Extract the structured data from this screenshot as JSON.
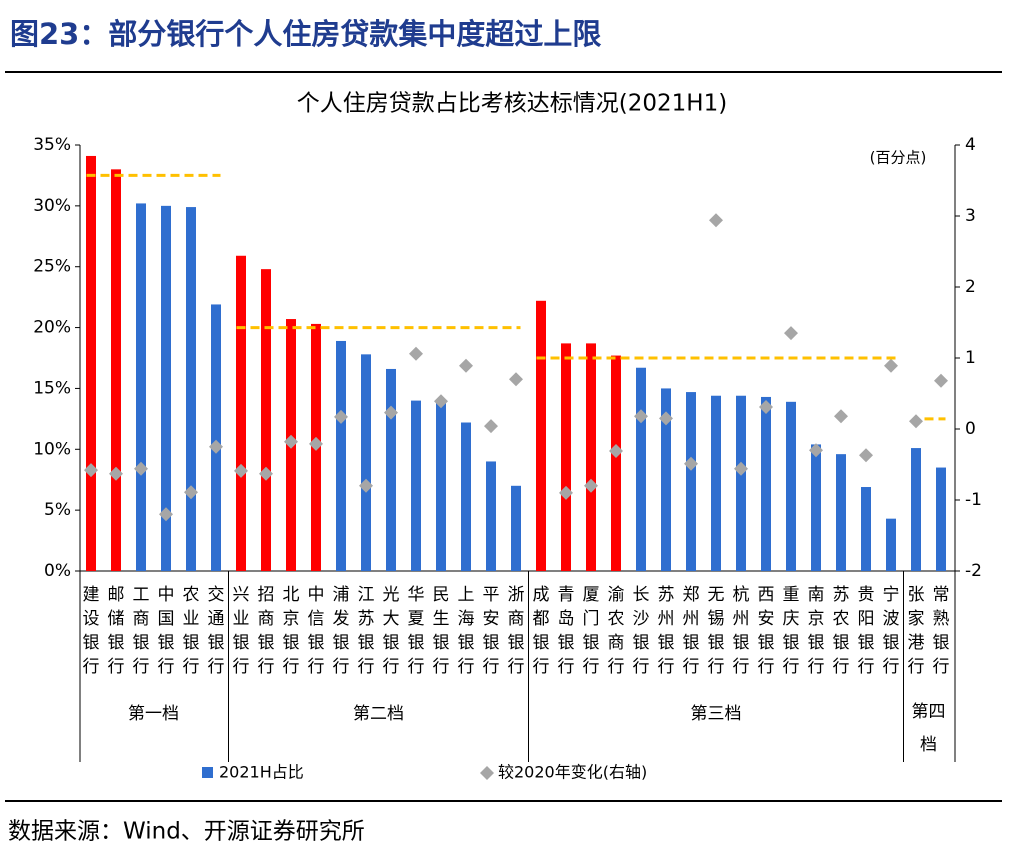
{
  "header": {
    "title": "图23：部分银行个人住房贷款集中度超过上限"
  },
  "chart_data": {
    "type": "bar",
    "title": "个人住房贷款占比考核达标情况(2021H1)",
    "categories": [
      "建设银行",
      "邮储银行",
      "工商银行",
      "中国银行",
      "农业银行",
      "交通银行",
      "兴业银行",
      "招商银行",
      "北京银行",
      "中信银行",
      "浦发银行",
      "江苏银行",
      "光大银行",
      "华夏银行",
      "民生银行",
      "上海银行",
      "平安银行",
      "浙商银行",
      "成都银行",
      "青岛银行",
      "厦门银行",
      "渝农商行",
      "长沙银行",
      "苏州银行",
      "郑州银行",
      "无锡银行",
      "杭州银行",
      "西安银行",
      "重庆银行",
      "南京银行",
      "苏农银行",
      "贵阳银行",
      "宁波银行",
      "张家港行",
      "常熟银行"
    ],
    "groups": [
      {
        "label": "第一档",
        "size": 6,
        "limit": 32.5
      },
      {
        "label": "第二档",
        "size": 12,
        "limit": 20
      },
      {
        "label": "第三档",
        "size": 15,
        "limit": 17.5
      },
      {
        "label": "第四档",
        "size": 2,
        "limit": 12.5
      }
    ],
    "limit_color": "#ffc000",
    "series": [
      {
        "name": "2021H占比",
        "type": "bar",
        "color": "#2f6ecf",
        "values": [
          34.1,
          33.0,
          30.2,
          30.0,
          29.9,
          21.9,
          25.9,
          24.8,
          20.7,
          20.3,
          18.9,
          17.8,
          16.6,
          14.0,
          13.9,
          12.2,
          9.0,
          7.0,
          22.2,
          18.7,
          18.7,
          17.7,
          16.7,
          15.0,
          14.7,
          14.4,
          14.4,
          14.3,
          13.9,
          10.4,
          9.6,
          6.9,
          4.3,
          10.1,
          8.5
        ],
        "bar_colors": [
          "#ff0000",
          "#ff0000",
          "#2f6ecf",
          "#2f6ecf",
          "#2f6ecf",
          "#2f6ecf",
          "#ff0000",
          "#ff0000",
          "#ff0000",
          "#ff0000",
          "#2f6ecf",
          "#2f6ecf",
          "#2f6ecf",
          "#2f6ecf",
          "#2f6ecf",
          "#2f6ecf",
          "#2f6ecf",
          "#2f6ecf",
          "#ff0000",
          "#ff0000",
          "#ff0000",
          "#ff0000",
          "#2f6ecf",
          "#2f6ecf",
          "#2f6ecf",
          "#2f6ecf",
          "#2f6ecf",
          "#2f6ecf",
          "#2f6ecf",
          "#2f6ecf",
          "#2f6ecf",
          "#2f6ecf",
          "#2f6ecf",
          "#2f6ecf",
          "#2f6ecf"
        ]
      },
      {
        "name": "较2020年变化(右轴)",
        "type": "scatter",
        "axis": "y2",
        "color": "#a6a6a6",
        "values": [
          -0.58,
          -0.63,
          -0.56,
          -1.2,
          -0.89,
          -0.25,
          -0.59,
          -0.63,
          -0.18,
          -0.21,
          0.17,
          -0.8,
          0.23,
          1.06,
          0.39,
          0.89,
          0.04,
          0.7,
          null,
          -0.9,
          -0.8,
          -0.31,
          0.18,
          0.15,
          -0.49,
          2.94,
          -0.56,
          0.31,
          1.35,
          -0.3,
          0.18,
          -0.37,
          0.89,
          0.11,
          0.68
        ]
      }
    ],
    "ylim": [
      0,
      35
    ],
    "yticks": [
      {
        "value": 0,
        "label": "0%"
      },
      {
        "value": 5,
        "label": "5%"
      },
      {
        "value": 10,
        "label": "10%"
      },
      {
        "value": 15,
        "label": "15%"
      },
      {
        "value": 20,
        "label": "20%"
      },
      {
        "value": 25,
        "label": "25%"
      },
      {
        "value": 30,
        "label": "30%"
      },
      {
        "value": 35,
        "label": "35%"
      }
    ],
    "y2label": "(百分点)",
    "y2lim": [
      -2,
      4
    ],
    "y2ticks": [
      -2,
      -1,
      0,
      1,
      2,
      3,
      4
    ]
  },
  "source": "数据来源：Wind、开源证券研究所"
}
